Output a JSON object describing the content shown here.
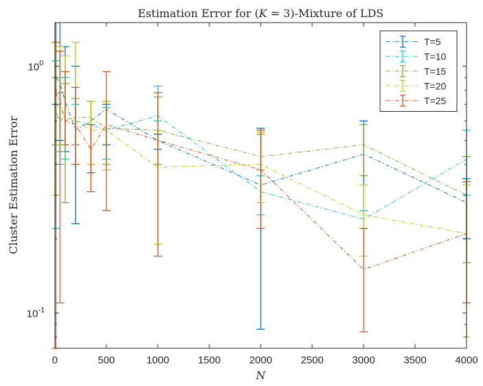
{
  "chart_data": {
    "type": "line",
    "title": "Estimation Error for (K = 3)-Mixture of LDS",
    "xlabel": "N",
    "ylabel": "Cluster Estimation Error",
    "xlim": [
      0,
      4000
    ],
    "ylim": [
      0.072,
      1.5
    ],
    "yscale": "log",
    "xticks": [
      0,
      500,
      1000,
      1500,
      2000,
      2500,
      3000,
      3500,
      4000
    ],
    "yticks": [
      {
        "value": 0.1,
        "base": "10",
        "exp": "-1"
      },
      {
        "value": 1,
        "base": "10",
        "exp": "0"
      }
    ],
    "legend_location": "top-right",
    "x": [
      10,
      50,
      100,
      200,
      350,
      500,
      1000,
      2000,
      3000,
      4000
    ],
    "series": [
      {
        "name": "T=5",
        "color": "#0072BD",
        "values": [
          0.9,
          0.85,
          0.72,
          0.55,
          0.6,
          0.67,
          0.5,
          0.33,
          0.44,
          0.28
        ],
        "lower": [
          0.7,
          0.5,
          0.45,
          0.23,
          0.37,
          0.48,
          0.46,
          0.086,
          0.26,
          0.2
        ],
        "upper": [
          1.7,
          2.2,
          1.2,
          1.0,
          0.72,
          0.7,
          0.53,
          0.56,
          0.6,
          0.35
        ]
      },
      {
        "name": "T=10",
        "color": "#1CC6CC",
        "values": [
          0.65,
          0.6,
          0.62,
          0.6,
          0.58,
          0.55,
          0.63,
          0.31,
          0.24,
          0.42
        ],
        "lower": [
          0.22,
          0.4,
          0.42,
          0.48,
          0.4,
          0.42,
          0.6,
          0.25,
          0.22,
          0.3
        ],
        "upper": [
          1.05,
          1.15,
          0.9,
          0.7,
          0.72,
          0.68,
          0.83,
          0.36,
          0.26,
          0.55
        ]
      },
      {
        "name": "T=15",
        "color": "#77AC30",
        "values": [
          0.62,
          0.62,
          0.6,
          0.62,
          0.62,
          0.56,
          0.55,
          0.43,
          0.48,
          0.3
        ],
        "lower": [
          0.48,
          0.45,
          0.28,
          0.48,
          0.4,
          0.4,
          0.4,
          0.38,
          0.36,
          0.16
        ],
        "upper": [
          0.9,
          0.78,
          0.85,
          0.74,
          0.72,
          0.72,
          0.75,
          0.53,
          0.58,
          0.43
        ]
      },
      {
        "name": "T=20",
        "color": "#C9C80A",
        "values": [
          0.7,
          0.68,
          0.62,
          0.6,
          0.55,
          0.55,
          0.39,
          0.4,
          0.25,
          0.21
        ],
        "lower": [
          0.3,
          0.48,
          0.48,
          0.4,
          0.4,
          0.38,
          0.19,
          0.28,
          0.17,
          0.08
        ],
        "upper": [
          1.25,
          1.2,
          1.1,
          1.25,
          0.72,
          0.72,
          0.55,
          0.54,
          0.33,
          0.33
        ]
      },
      {
        "name": "T=25",
        "color": "#D95319",
        "values": [
          0.78,
          0.72,
          0.6,
          0.58,
          0.46,
          0.58,
          0.5,
          0.38,
          0.15,
          0.21
        ],
        "lower": [
          0.072,
          0.11,
          0.48,
          0.4,
          0.31,
          0.26,
          0.17,
          0.22,
          0.084,
          0.11
        ],
        "upper": [
          1.25,
          1.15,
          0.95,
          0.82,
          0.58,
          0.95,
          0.78,
          0.55,
          0.22,
          0.34
        ]
      }
    ]
  }
}
